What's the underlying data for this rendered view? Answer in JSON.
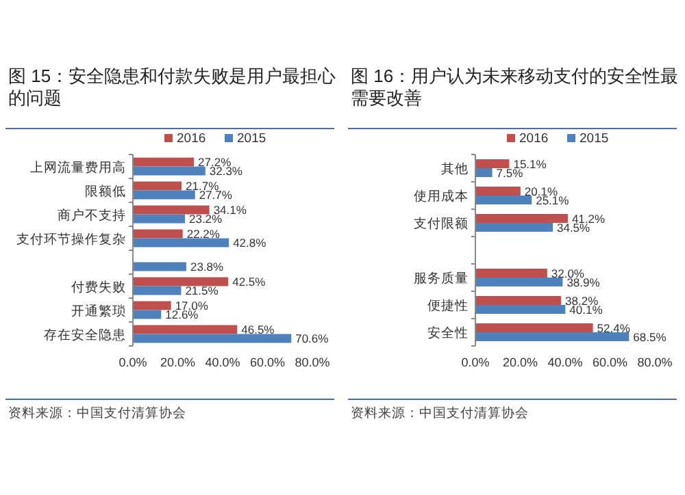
{
  "chart_data": [
    {
      "type": "bar",
      "orientation": "horizontal",
      "title": "图 15：安全隐患和付款失败是用户最担心的问题",
      "categories": [
        "上网流量费用高",
        "限额低",
        "商户不支持",
        "支付环节操作复杂",
        null,
        "付费失败",
        "开通繁琐",
        "存在安全隐患"
      ],
      "series": [
        {
          "name": "2016",
          "color": "#c0504d",
          "values": [
            27.2,
            21.7,
            34.1,
            22.2,
            null,
            42.5,
            17.0,
            46.5
          ],
          "value_labels": [
            "27.2%",
            "21.7%",
            "34.1%",
            "22.2%",
            null,
            "42.5%",
            "17.0%",
            "46.5%"
          ]
        },
        {
          "name": "2015",
          "color": "#4f81bd",
          "values": [
            32.3,
            27.7,
            23.2,
            42.8,
            23.8,
            21.5,
            12.6,
            70.6
          ],
          "value_labels": [
            "32.3%",
            "27.7%",
            "23.2%",
            "42.8%",
            "23.8%",
            "21.5%",
            "12.6%",
            "70.6%"
          ]
        }
      ],
      "xlim": [
        0,
        80
      ],
      "xticks": [
        {
          "value": 0,
          "label": "0.0%"
        },
        {
          "value": 20,
          "label": "20.0%"
        },
        {
          "value": 40,
          "label": "40.0%"
        },
        {
          "value": 60,
          "label": "60.0%"
        },
        {
          "value": 80,
          "label": "80.0%"
        }
      ],
      "legend": "top",
      "grid": false,
      "annotations": [
        "资料来源：中国支付清算协会"
      ]
    },
    {
      "type": "bar",
      "orientation": "horizontal",
      "title": "图 16：用户认为未来移动支付的安全性最需要改善",
      "categories": [
        "其他",
        "使用成本",
        "支付限额",
        null,
        "服务质量",
        "便捷性",
        "安全性"
      ],
      "series": [
        {
          "name": "2016",
          "color": "#c0504d",
          "values": [
            15.1,
            20.1,
            41.2,
            null,
            32.0,
            38.2,
            52.4
          ],
          "value_labels": [
            "15.1%",
            "20.1%",
            "41.2%",
            null,
            "32.0%",
            "38.2%",
            "52.4%"
          ]
        },
        {
          "name": "2015",
          "color": "#4f81bd",
          "values": [
            7.5,
            25.1,
            34.5,
            null,
            38.9,
            40.1,
            68.5
          ],
          "value_labels": [
            "7.5%",
            "25.1%",
            "34.5%",
            null,
            "38.9%",
            "40.1%",
            "68.5%"
          ]
        }
      ],
      "xlim": [
        0,
        80
      ],
      "xticks": [
        {
          "value": 0,
          "label": "0.0%"
        },
        {
          "value": 20,
          "label": "20.0%"
        },
        {
          "value": 40,
          "label": "40.0%"
        },
        {
          "value": 60,
          "label": "60.0%"
        },
        {
          "value": 80,
          "label": "80.0%"
        }
      ],
      "legend": "top",
      "grid": false,
      "annotations": [
        "资料来源：中国支付清算协会"
      ]
    }
  ]
}
